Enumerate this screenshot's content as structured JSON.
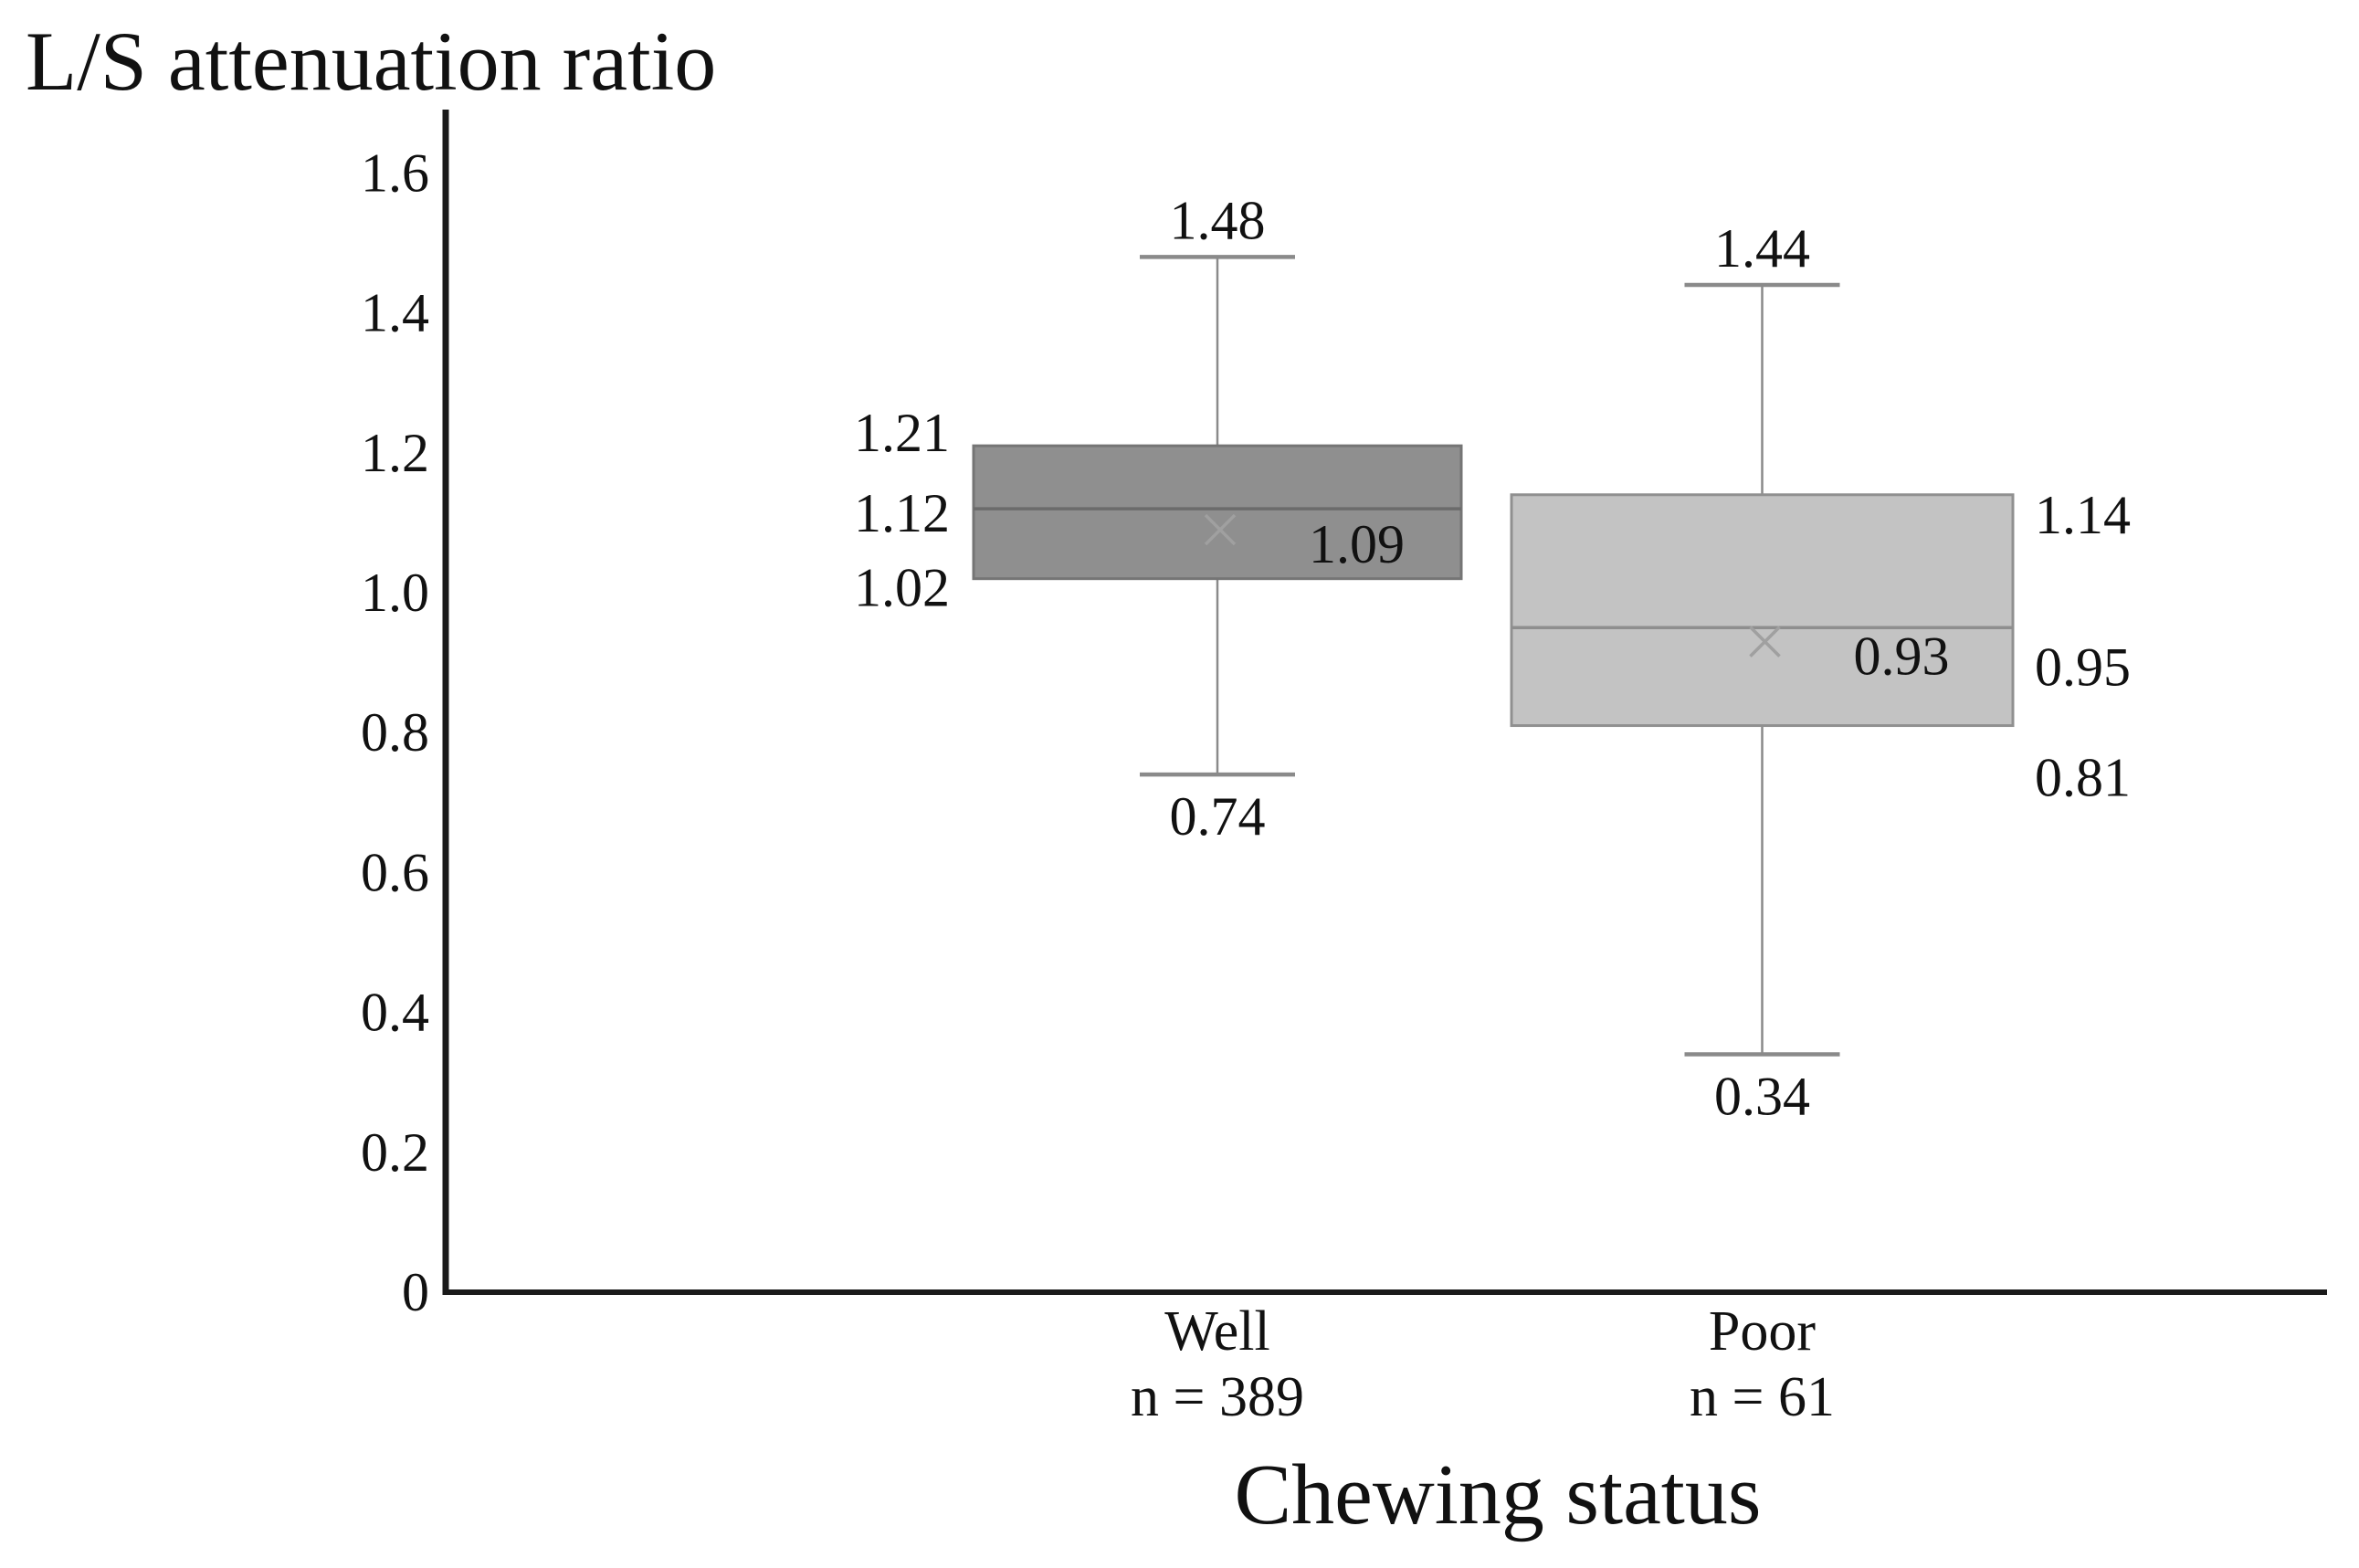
{
  "chart_data": {
    "type": "boxplot",
    "title": "L/S attenuation ratio",
    "xlabel": "Chewing status",
    "ylabel": "",
    "ylim": [
      0,
      1.6
    ],
    "grid": false,
    "legend": false,
    "yticks": [
      {
        "value": 1.6,
        "label": "1.6"
      },
      {
        "value": 1.4,
        "label": "1.4"
      },
      {
        "value": 1.2,
        "label": "1.2"
      },
      {
        "value": 1.0,
        "label": "1.0"
      },
      {
        "value": 0.8,
        "label": "0.8"
      },
      {
        "value": 0.6,
        "label": "0.6"
      },
      {
        "value": 0.4,
        "label": "0.4"
      },
      {
        "value": 0.2,
        "label": "0.2"
      },
      {
        "value": 0.0,
        "label": "0"
      }
    ],
    "categories": [
      "Well",
      "Poor"
    ],
    "series": [
      {
        "name": "Well",
        "n_label": "n = 389",
        "whisker_high": 1.48,
        "q3": 1.21,
        "median": 1.12,
        "mean": 1.09,
        "q1": 1.02,
        "whisker_low": 0.74,
        "value_labels": {
          "whisker_high": "1.48",
          "q3": "1.21",
          "median": "1.12",
          "mean": "1.09",
          "q1": "1.02",
          "whisker_low": "0.74"
        },
        "label_side": "left",
        "fill": "#8f8f8f",
        "stroke": "#757575",
        "median_color": "#6b6b6b"
      },
      {
        "name": "Poor",
        "n_label": "n = 61",
        "whisker_high": 1.44,
        "q3": 1.14,
        "median": 0.95,
        "mean": 0.93,
        "q1": 0.81,
        "whisker_low": 0.34,
        "value_labels": {
          "whisker_high": "1.44",
          "q3": "1.14",
          "median": "0.95",
          "mean": "0.93",
          "q1": "0.81",
          "whisker_low": "0.34"
        },
        "label_side": "right",
        "fill": "#c3c3c3",
        "stroke": "#909090",
        "median_color": "#8e8e8e"
      }
    ],
    "colors": {
      "axis": "#1a1a1a",
      "text": "#111111",
      "whisker": "#8a8a8a",
      "mean_marker": "#a0a0a0"
    }
  }
}
